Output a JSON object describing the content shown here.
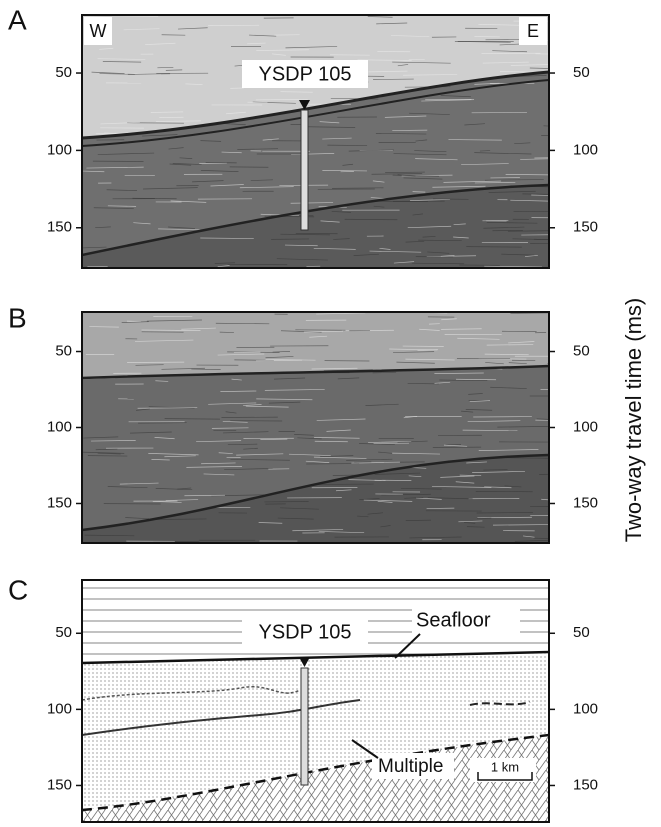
{
  "panels": [
    {
      "label": "A",
      "west": "W",
      "east": "E",
      "borehole": "YSDP 105",
      "ylim": [
        12.5,
        176
      ],
      "yticks": [
        50,
        100,
        150
      ]
    },
    {
      "label": "B",
      "ylim": [
        24,
        176
      ],
      "yticks": [
        50,
        100,
        150
      ]
    },
    {
      "label": "C",
      "borehole": "YSDP 105",
      "seafloor": "Seafloor",
      "multiple": "Multiple",
      "scale": "1 km",
      "ylim": [
        15,
        174
      ],
      "yticks": [
        50,
        100,
        150
      ]
    }
  ],
  "axis_title": "Two-way travel time (ms)"
}
